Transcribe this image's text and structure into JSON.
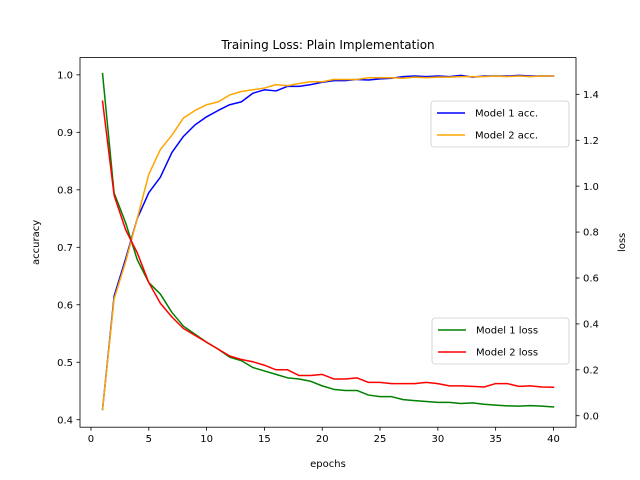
{
  "chart_data": {
    "type": "line",
    "title": "Training Loss: Plain Implementation",
    "xlabel": "epochs",
    "ylabel_left": "accuracy",
    "ylabel_right": "loss",
    "xlim": [
      -0.95,
      41.95
    ],
    "ylim_left": [
      0.387,
      1.03
    ],
    "ylim_right": [
      -0.05,
      1.56
    ],
    "xticks": [
      0,
      5,
      10,
      15,
      20,
      25,
      30,
      35,
      40
    ],
    "yticks_left": [
      0.4,
      0.5,
      0.6,
      0.7,
      0.8,
      0.9,
      1.0
    ],
    "yticks_right": [
      0.0,
      0.2,
      0.4,
      0.6,
      0.8,
      1.0,
      1.2,
      1.4
    ],
    "ytick_labels_left": [
      "0.4",
      "0.5",
      "0.6",
      "0.7",
      "0.8",
      "0.9",
      "1.0"
    ],
    "ytick_labels_right": [
      "0.0",
      "0.2",
      "0.4",
      "0.6",
      "0.8",
      "1.0",
      "1.2",
      "1.4"
    ],
    "x": [
      1,
      2,
      3,
      4,
      5,
      6,
      7,
      8,
      9,
      10,
      11,
      12,
      13,
      14,
      15,
      16,
      17,
      18,
      19,
      20,
      21,
      22,
      23,
      24,
      25,
      26,
      27,
      28,
      29,
      30,
      31,
      32,
      33,
      34,
      35,
      36,
      37,
      38,
      39,
      40
    ],
    "series": [
      {
        "name": "Model 1 acc.",
        "axis": "left",
        "color": "#0000ff",
        "values": [
          0.418,
          0.615,
          0.68,
          0.75,
          0.795,
          0.822,
          0.865,
          0.893,
          0.913,
          0.927,
          0.938,
          0.948,
          0.953,
          0.968,
          0.974,
          0.972,
          0.98,
          0.98,
          0.983,
          0.987,
          0.99,
          0.99,
          0.992,
          0.991,
          0.993,
          0.994,
          0.997,
          0.998,
          0.997,
          0.998,
          0.997,
          0.999,
          0.996,
          0.998,
          0.998,
          0.998,
          0.999,
          0.998,
          0.998,
          0.998
        ]
      },
      {
        "name": "Model 2 acc.",
        "axis": "left",
        "color": "#ffa500",
        "values": [
          0.418,
          0.61,
          0.675,
          0.75,
          0.827,
          0.87,
          0.895,
          0.925,
          0.938,
          0.948,
          0.953,
          0.965,
          0.971,
          0.974,
          0.977,
          0.983,
          0.981,
          0.985,
          0.988,
          0.988,
          0.992,
          0.992,
          0.992,
          0.995,
          0.995,
          0.995,
          0.994,
          0.996,
          0.995,
          0.996,
          0.996,
          0.997,
          0.997,
          0.997,
          0.998,
          0.997,
          0.998,
          0.997,
          0.998,
          0.998
        ]
      },
      {
        "name": "Model 1 loss",
        "axis": "right",
        "color": "#008000",
        "values": [
          1.49,
          0.97,
          0.84,
          0.68,
          0.58,
          0.53,
          0.45,
          0.39,
          0.355,
          0.32,
          0.29,
          0.255,
          0.24,
          0.21,
          0.195,
          0.18,
          0.165,
          0.16,
          0.15,
          0.13,
          0.115,
          0.11,
          0.11,
          0.09,
          0.083,
          0.083,
          0.07,
          0.066,
          0.062,
          0.058,
          0.058,
          0.053,
          0.056,
          0.05,
          0.046,
          0.043,
          0.042,
          0.044,
          0.042,
          0.038
        ]
      },
      {
        "name": "Model 2 loss",
        "axis": "right",
        "color": "#ff0000",
        "values": [
          1.37,
          0.96,
          0.81,
          0.71,
          0.58,
          0.49,
          0.43,
          0.38,
          0.35,
          0.32,
          0.29,
          0.26,
          0.245,
          0.235,
          0.22,
          0.2,
          0.2,
          0.175,
          0.175,
          0.18,
          0.16,
          0.16,
          0.165,
          0.145,
          0.145,
          0.14,
          0.14,
          0.14,
          0.145,
          0.14,
          0.13,
          0.13,
          0.128,
          0.125,
          0.14,
          0.14,
          0.128,
          0.13,
          0.125,
          0.124
        ]
      }
    ],
    "legend_acc": {
      "placement": "upper-right",
      "entries": [
        "Model 1 acc.",
        "Model 2 acc."
      ]
    },
    "legend_loss": {
      "placement": "lower-right",
      "entries": [
        "Model 1 loss",
        "Model 2 loss"
      ]
    },
    "grid": false
  }
}
